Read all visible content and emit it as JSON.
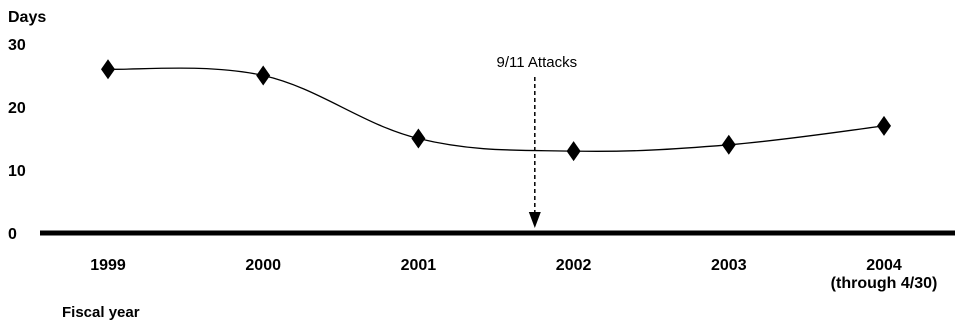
{
  "chart_data": {
    "type": "line",
    "title": "",
    "ylabel": "Days",
    "xlabel": "Fiscal year",
    "ylim": [
      0,
      30
    ],
    "yticks": [
      0,
      10,
      20,
      30
    ],
    "categories": [
      [
        "1999"
      ],
      [
        "2000"
      ],
      [
        "2001"
      ],
      [
        "2002"
      ],
      [
        "2003"
      ],
      [
        "2004",
        "(through 4/30)"
      ]
    ],
    "values": [
      26,
      25,
      15,
      13,
      14,
      17
    ],
    "grid": false,
    "marker": "diamond",
    "color": "#000000",
    "annotation": {
      "text": "9/11 Attacks",
      "x_between": [
        "2001",
        "2002"
      ]
    }
  }
}
